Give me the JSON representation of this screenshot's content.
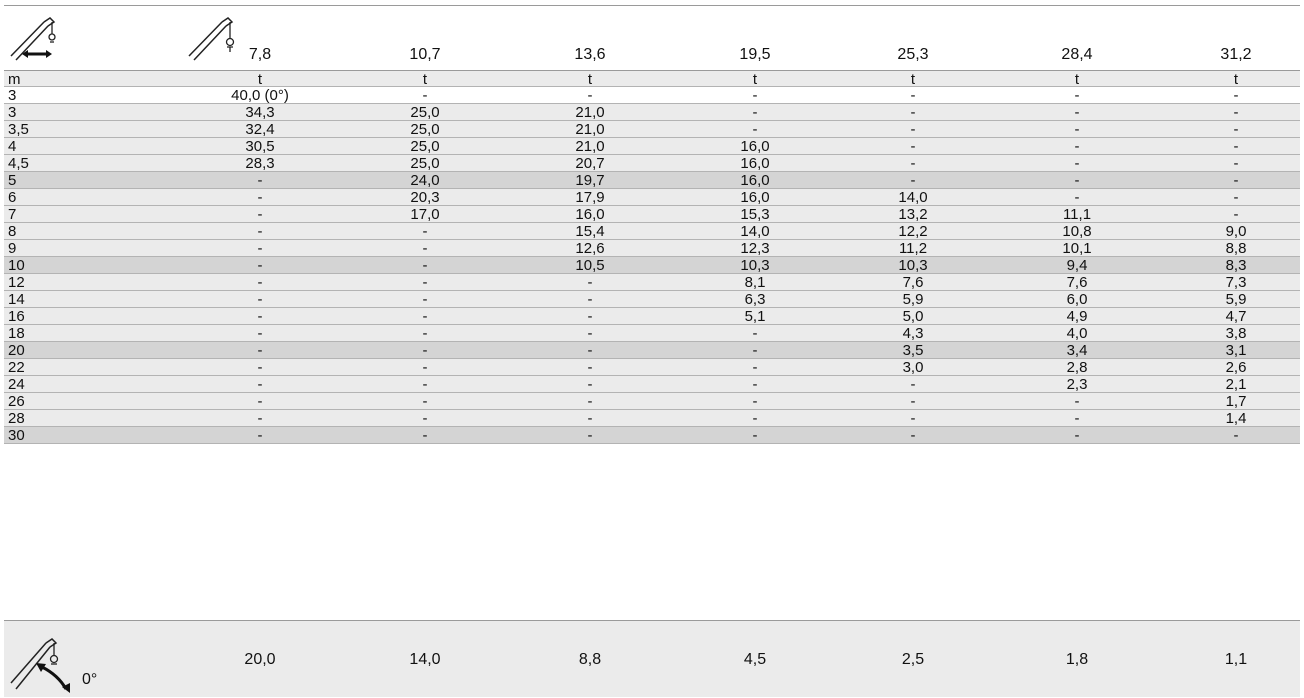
{
  "header": {
    "boom_lengths": [
      "7,8",
      "10,7",
      "13,6",
      "19,5",
      "25,3",
      "28,4",
      "31,2"
    ]
  },
  "units": {
    "radius": "m",
    "load": [
      "t",
      "t",
      "t",
      "t",
      "t",
      "t",
      "t"
    ]
  },
  "rows": [
    {
      "radius": "3",
      "values": [
        "40,0 (0°)",
        "-",
        "-",
        "-",
        "-",
        "-",
        "-"
      ],
      "shade": "none"
    },
    {
      "radius": "3",
      "values": [
        "34,3",
        "25,0",
        "21,0",
        "-",
        "-",
        "-",
        "-"
      ],
      "shade": "light"
    },
    {
      "radius": "3,5",
      "values": [
        "32,4",
        "25,0",
        "21,0",
        "-",
        "-",
        "-",
        "-"
      ],
      "shade": "light"
    },
    {
      "radius": "4",
      "values": [
        "30,5",
        "25,0",
        "21,0",
        "16,0",
        "-",
        "-",
        "-"
      ],
      "shade": "light"
    },
    {
      "radius": "4,5",
      "values": [
        "28,3",
        "25,0",
        "20,7",
        "16,0",
        "-",
        "-",
        "-"
      ],
      "shade": "light"
    },
    {
      "radius": "5",
      "values": [
        "-",
        "24,0",
        "19,7",
        "16,0",
        "-",
        "-",
        "-"
      ],
      "shade": "dark"
    },
    {
      "radius": "6",
      "values": [
        "-",
        "20,3",
        "17,9",
        "16,0",
        "14,0",
        "-",
        "-"
      ],
      "shade": "light"
    },
    {
      "radius": "7",
      "values": [
        "-",
        "17,0",
        "16,0",
        "15,3",
        "13,2",
        "11,1",
        "-"
      ],
      "shade": "light"
    },
    {
      "radius": "8",
      "values": [
        "-",
        "-",
        "15,4",
        "14,0",
        "12,2",
        "10,8",
        "9,0"
      ],
      "shade": "light"
    },
    {
      "radius": "9",
      "values": [
        "-",
        "-",
        "12,6",
        "12,3",
        "11,2",
        "10,1",
        "8,8"
      ],
      "shade": "light"
    },
    {
      "radius": "10",
      "values": [
        "-",
        "-",
        "10,5",
        "10,3",
        "10,3",
        "9,4",
        "8,3"
      ],
      "shade": "dark"
    },
    {
      "radius": "12",
      "values": [
        "-",
        "-",
        "-",
        "8,1",
        "7,6",
        "7,6",
        "7,3"
      ],
      "shade": "light"
    },
    {
      "radius": "14",
      "values": [
        "-",
        "-",
        "-",
        "6,3",
        "5,9",
        "6,0",
        "5,9"
      ],
      "shade": "light"
    },
    {
      "radius": "16",
      "values": [
        "-",
        "-",
        "-",
        "5,1",
        "5,0",
        "4,9",
        "4,7"
      ],
      "shade": "light"
    },
    {
      "radius": "18",
      "values": [
        "-",
        "-",
        "-",
        "-",
        "4,3",
        "4,0",
        "3,8"
      ],
      "shade": "light"
    },
    {
      "radius": "20",
      "values": [
        "-",
        "-",
        "-",
        "-",
        "3,5",
        "3,4",
        "3,1"
      ],
      "shade": "dark"
    },
    {
      "radius": "22",
      "values": [
        "-",
        "-",
        "-",
        "-",
        "3,0",
        "2,8",
        "2,6"
      ],
      "shade": "light"
    },
    {
      "radius": "24",
      "values": [
        "-",
        "-",
        "-",
        "-",
        "-",
        "2,3",
        "2,1"
      ],
      "shade": "light"
    },
    {
      "radius": "26",
      "values": [
        "-",
        "-",
        "-",
        "-",
        "-",
        "-",
        "1,7"
      ],
      "shade": "light"
    },
    {
      "radius": "28",
      "values": [
        "-",
        "-",
        "-",
        "-",
        "-",
        "-",
        "1,4"
      ],
      "shade": "light"
    },
    {
      "radius": "30",
      "values": [
        "-",
        "-",
        "-",
        "-",
        "-",
        "-",
        "-"
      ],
      "shade": "dark"
    }
  ],
  "bottom": {
    "angle_label": "0°",
    "values": [
      "20,0",
      "14,0",
      "8,8",
      "4,5",
      "2,5",
      "1,8",
      "1,1"
    ]
  },
  "icons": {
    "top_left": "boom-telescope-icon",
    "header": "boom-hook-icon",
    "bottom_left": "boom-luffing-icon"
  }
}
